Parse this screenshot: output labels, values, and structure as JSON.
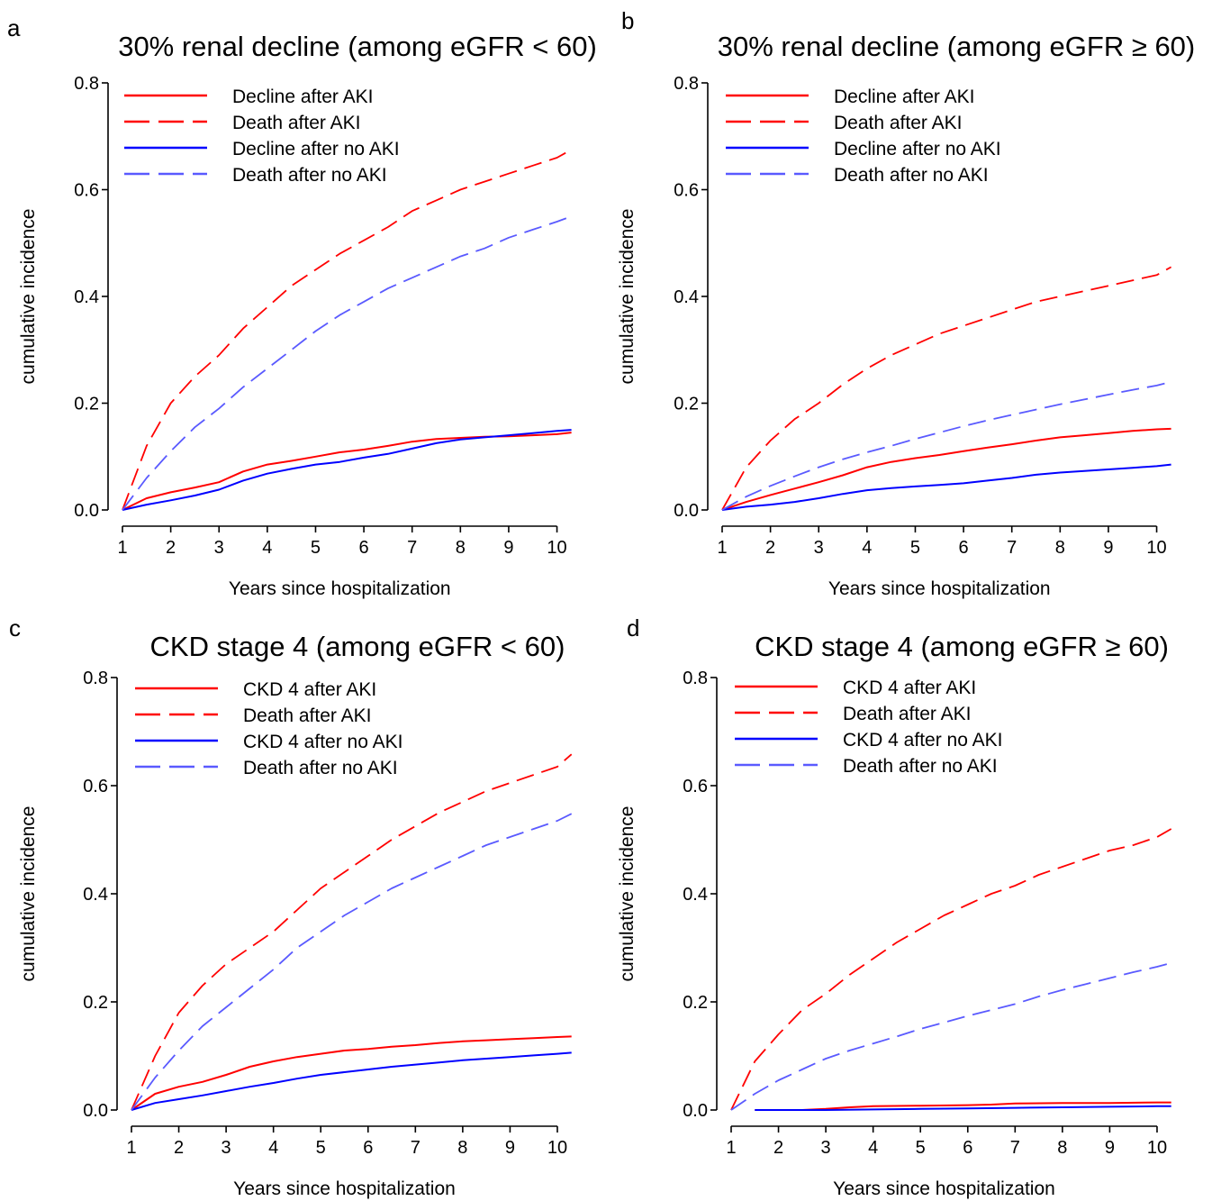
{
  "panels": [
    {
      "letter": "a",
      "title": "30% renal decline (among eGFR < 60)"
    },
    {
      "letter": "b",
      "title": "30% renal decline (among eGFR ≥ 60)"
    },
    {
      "letter": "c",
      "title": "CKD stage 4 (among eGFR < 60)"
    },
    {
      "letter": "d",
      "title": "CKD stage 4 (among eGFR ≥ 60)"
    }
  ],
  "chart_data": [
    {
      "type": "line",
      "title": "30% renal decline (among eGFR < 60)",
      "xlabel": "Years since hospitalization",
      "ylabel": "cumulative incidence",
      "xlim": [
        1,
        10.4
      ],
      "ylim": [
        0,
        0.8
      ],
      "xticks": [
        "1",
        "2",
        "3",
        "4",
        "5",
        "6",
        "7",
        "8",
        "9",
        "10"
      ],
      "yticks": [
        "0.0",
        "0.2",
        "0.4",
        "0.6",
        "0.8"
      ],
      "legend": "top-left",
      "grid": false,
      "series": [
        {
          "name": "Decline after AKI",
          "color": "#ff0000",
          "dash": "solid",
          "x": [
            1,
            1.5,
            2,
            2.5,
            3,
            3.5,
            4,
            4.5,
            5,
            5.5,
            6,
            6.5,
            7,
            7.5,
            8,
            8.5,
            9,
            9.5,
            10,
            10.3
          ],
          "y": [
            0,
            0.022,
            0.033,
            0.042,
            0.052,
            0.072,
            0.085,
            0.092,
            0.1,
            0.108,
            0.113,
            0.12,
            0.128,
            0.133,
            0.135,
            0.137,
            0.138,
            0.14,
            0.142,
            0.145
          ]
        },
        {
          "name": "Death after AKI",
          "color": "#ff0000",
          "dash": "dashed",
          "x": [
            1,
            1.5,
            2,
            2.5,
            3,
            3.5,
            4,
            4.5,
            5,
            5.5,
            6,
            6.5,
            7,
            7.5,
            8,
            8.5,
            9,
            9.5,
            10,
            10.3
          ],
          "y": [
            0,
            0.12,
            0.2,
            0.25,
            0.29,
            0.34,
            0.38,
            0.42,
            0.45,
            0.48,
            0.505,
            0.53,
            0.56,
            0.58,
            0.6,
            0.615,
            0.63,
            0.645,
            0.66,
            0.675
          ]
        },
        {
          "name": "Decline after no AKI",
          "color": "#0000ff",
          "dash": "solid",
          "x": [
            1,
            1.5,
            2,
            2.5,
            3,
            3.5,
            4,
            4.5,
            5,
            5.5,
            6,
            6.5,
            7,
            7.5,
            8,
            8.5,
            9,
            9.5,
            10,
            10.3
          ],
          "y": [
            0,
            0.01,
            0.018,
            0.027,
            0.038,
            0.055,
            0.068,
            0.077,
            0.085,
            0.09,
            0.098,
            0.105,
            0.115,
            0.125,
            0.132,
            0.136,
            0.14,
            0.144,
            0.148,
            0.15
          ]
        },
        {
          "name": "Death after no AKI",
          "color": "#5a5aff",
          "dash": "dashed",
          "x": [
            1,
            1.5,
            2,
            2.5,
            3,
            3.5,
            4,
            4.5,
            5,
            5.5,
            6,
            6.5,
            7,
            7.5,
            8,
            8.5,
            9,
            9.5,
            10,
            10.3
          ],
          "y": [
            0,
            0.06,
            0.11,
            0.155,
            0.19,
            0.23,
            0.265,
            0.3,
            0.335,
            0.365,
            0.39,
            0.415,
            0.435,
            0.455,
            0.475,
            0.49,
            0.51,
            0.525,
            0.54,
            0.55
          ]
        }
      ]
    },
    {
      "type": "line",
      "title": "30% renal decline (among eGFR ≥ 60)",
      "xlabel": "Years since hospitalization",
      "ylabel": "cumulative incidence",
      "xlim": [
        1,
        10.4
      ],
      "ylim": [
        0,
        0.8
      ],
      "xticks": [
        "1",
        "2",
        "3",
        "4",
        "5",
        "6",
        "7",
        "8",
        "9",
        "10"
      ],
      "yticks": [
        "0.0",
        "0.2",
        "0.4",
        "0.6",
        "0.8"
      ],
      "legend": "top-left",
      "grid": false,
      "series": [
        {
          "name": "Decline after AKI",
          "color": "#ff0000",
          "dash": "solid",
          "x": [
            1,
            1.5,
            2,
            2.5,
            3,
            3.5,
            4,
            4.5,
            5,
            5.5,
            6,
            6.5,
            7,
            7.5,
            8,
            8.5,
            9,
            9.5,
            10,
            10.3
          ],
          "y": [
            0,
            0.015,
            0.028,
            0.04,
            0.052,
            0.065,
            0.08,
            0.09,
            0.097,
            0.103,
            0.11,
            0.117,
            0.123,
            0.13,
            0.136,
            0.14,
            0.144,
            0.148,
            0.151,
            0.152
          ]
        },
        {
          "name": "Death after AKI",
          "color": "#ff0000",
          "dash": "dashed",
          "x": [
            1,
            1.5,
            2,
            2.5,
            3,
            3.5,
            4,
            4.5,
            5,
            5.5,
            6,
            6.5,
            7,
            7.5,
            8,
            8.5,
            9,
            9.5,
            10,
            10.3
          ],
          "y": [
            0,
            0.08,
            0.13,
            0.17,
            0.2,
            0.235,
            0.265,
            0.29,
            0.31,
            0.33,
            0.345,
            0.36,
            0.375,
            0.39,
            0.4,
            0.41,
            0.42,
            0.43,
            0.44,
            0.455
          ]
        },
        {
          "name": "Decline after no AKI",
          "color": "#0000ff",
          "dash": "solid",
          "x": [
            1,
            1.5,
            2,
            2.5,
            3,
            3.5,
            4,
            4.5,
            5,
            5.5,
            6,
            6.5,
            7,
            7.5,
            8,
            8.5,
            9,
            9.5,
            10,
            10.3
          ],
          "y": [
            0,
            0.006,
            0.01,
            0.015,
            0.022,
            0.03,
            0.037,
            0.041,
            0.044,
            0.047,
            0.05,
            0.055,
            0.06,
            0.066,
            0.07,
            0.073,
            0.076,
            0.079,
            0.082,
            0.085
          ]
        },
        {
          "name": "Death after no AKI",
          "color": "#5a5aff",
          "dash": "dashed",
          "x": [
            1,
            1.5,
            2,
            2.5,
            3,
            3.5,
            4,
            4.5,
            5,
            5.5,
            6,
            6.5,
            7,
            7.5,
            8,
            8.5,
            9,
            9.5,
            10,
            10.3
          ],
          "y": [
            0,
            0.025,
            0.045,
            0.063,
            0.08,
            0.095,
            0.108,
            0.12,
            0.133,
            0.145,
            0.157,
            0.168,
            0.178,
            0.188,
            0.198,
            0.207,
            0.216,
            0.225,
            0.233,
            0.24
          ]
        }
      ]
    },
    {
      "type": "line",
      "title": "CKD stage 4 (among eGFR < 60)",
      "xlabel": "Years since hospitalization",
      "ylabel": "cumulative incidence",
      "xlim": [
        1,
        10.4
      ],
      "ylim": [
        0,
        0.8
      ],
      "xticks": [
        "1",
        "2",
        "3",
        "4",
        "5",
        "6",
        "7",
        "8",
        "9",
        "10"
      ],
      "yticks": [
        "0.0",
        "0.2",
        "0.4",
        "0.6",
        "0.8"
      ],
      "legend": "top-left",
      "grid": false,
      "series": [
        {
          "name": "CKD 4 after AKI",
          "color": "#ff0000",
          "dash": "solid",
          "x": [
            1,
            1.5,
            2,
            2.5,
            3,
            3.5,
            4,
            4.5,
            5,
            5.5,
            6,
            6.5,
            7,
            7.5,
            8,
            8.5,
            9,
            9.5,
            10,
            10.3
          ],
          "y": [
            0,
            0.03,
            0.043,
            0.052,
            0.065,
            0.08,
            0.09,
            0.098,
            0.104,
            0.11,
            0.113,
            0.117,
            0.12,
            0.124,
            0.127,
            0.129,
            0.131,
            0.133,
            0.135,
            0.136
          ]
        },
        {
          "name": "Death after AKI",
          "color": "#ff0000",
          "dash": "dashed",
          "x": [
            1,
            1.5,
            2,
            2.5,
            3,
            3.5,
            4,
            4.5,
            5,
            5.5,
            6,
            6.5,
            7,
            7.5,
            8,
            8.5,
            9,
            9.5,
            10,
            10.3
          ],
          "y": [
            0,
            0.1,
            0.18,
            0.23,
            0.27,
            0.3,
            0.33,
            0.37,
            0.41,
            0.44,
            0.47,
            0.5,
            0.525,
            0.55,
            0.57,
            0.59,
            0.605,
            0.62,
            0.635,
            0.658
          ]
        },
        {
          "name": "CKD 4 after no AKI",
          "color": "#0000ff",
          "dash": "solid",
          "x": [
            1,
            1.5,
            2,
            2.5,
            3,
            3.5,
            4,
            4.5,
            5,
            5.5,
            6,
            6.5,
            7,
            7.5,
            8,
            8.5,
            9,
            9.5,
            10,
            10.3
          ],
          "y": [
            0,
            0.013,
            0.02,
            0.027,
            0.035,
            0.043,
            0.05,
            0.058,
            0.065,
            0.07,
            0.075,
            0.08,
            0.084,
            0.088,
            0.092,
            0.095,
            0.098,
            0.101,
            0.104,
            0.106
          ]
        },
        {
          "name": "Death after no AKI",
          "color": "#5a5aff",
          "dash": "dashed",
          "x": [
            1,
            1.5,
            2,
            2.5,
            3,
            3.5,
            4,
            4.5,
            5,
            5.5,
            6,
            6.5,
            7,
            7.5,
            8,
            8.5,
            9,
            9.5,
            10,
            10.3
          ],
          "y": [
            0,
            0.06,
            0.11,
            0.155,
            0.19,
            0.225,
            0.26,
            0.3,
            0.33,
            0.36,
            0.385,
            0.41,
            0.43,
            0.45,
            0.47,
            0.49,
            0.505,
            0.52,
            0.535,
            0.548
          ]
        }
      ]
    },
    {
      "type": "line",
      "title": "CKD stage 4 (among eGFR ≥ 60)",
      "xlabel": "Years since hospitalization",
      "ylabel": "cumulative incidence",
      "xlim": [
        1,
        10.4
      ],
      "ylim": [
        0,
        0.8
      ],
      "xticks": [
        "1",
        "2",
        "3",
        "4",
        "5",
        "6",
        "7",
        "8",
        "9",
        "10"
      ],
      "yticks": [
        "0.0",
        "0.2",
        "0.4",
        "0.6",
        "0.8"
      ],
      "legend": "top-left",
      "grid": false,
      "series": [
        {
          "name": "CKD 4 after AKI",
          "color": "#ff0000",
          "dash": "solid",
          "x": [
            1.5,
            2,
            2.5,
            3,
            3.5,
            4,
            5,
            6,
            6.5,
            7,
            8,
            9,
            10,
            10.3
          ],
          "y": [
            0,
            0,
            0,
            0.002,
            0.005,
            0.007,
            0.008,
            0.009,
            0.01,
            0.012,
            0.013,
            0.013,
            0.014,
            0.014
          ]
        },
        {
          "name": "Death after AKI",
          "color": "#ff0000",
          "dash": "dashed",
          "x": [
            1,
            1.5,
            2,
            2.5,
            3,
            3.5,
            4,
            4.5,
            5,
            5.5,
            6,
            6.5,
            7,
            7.5,
            8,
            8.5,
            9,
            9.5,
            10,
            10.3
          ],
          "y": [
            0,
            0.09,
            0.14,
            0.185,
            0.215,
            0.25,
            0.28,
            0.31,
            0.335,
            0.36,
            0.38,
            0.4,
            0.415,
            0.435,
            0.45,
            0.465,
            0.48,
            0.49,
            0.505,
            0.52
          ]
        },
        {
          "name": "CKD 4 after no AKI",
          "color": "#0000ff",
          "dash": "solid",
          "x": [
            1.5,
            2,
            3,
            4,
            5,
            6,
            7,
            8,
            9,
            10,
            10.3
          ],
          "y": [
            0,
            0,
            0,
            0.001,
            0.002,
            0.003,
            0.004,
            0.005,
            0.006,
            0.007,
            0.007
          ]
        },
        {
          "name": "Death after no AKI",
          "color": "#5a5aff",
          "dash": "dashed",
          "x": [
            1,
            1.5,
            2,
            2.5,
            3,
            3.5,
            4,
            4.5,
            5,
            5.5,
            6,
            6.5,
            7,
            7.5,
            8,
            8.5,
            9,
            9.5,
            10,
            10.3
          ],
          "y": [
            0,
            0.03,
            0.055,
            0.075,
            0.095,
            0.11,
            0.123,
            0.136,
            0.15,
            0.162,
            0.174,
            0.185,
            0.196,
            0.21,
            0.222,
            0.233,
            0.244,
            0.255,
            0.265,
            0.272
          ]
        }
      ]
    }
  ]
}
